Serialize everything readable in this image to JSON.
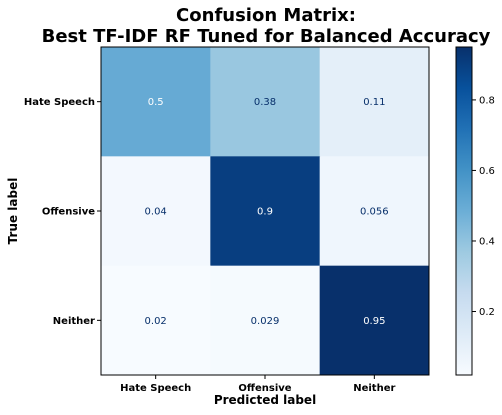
{
  "chart_data": {
    "type": "heatmap",
    "title_line1": "Confusion Matrix:",
    "title_line2": "Best TF-IDF RF Tuned for Balanced Accuracy",
    "xlabel": "Predicted label",
    "ylabel": "True label",
    "x_categories": [
      "Hate Speech",
      "Offensive",
      "Neither"
    ],
    "y_categories": [
      "Hate Speech",
      "Offensive",
      "Neither"
    ],
    "values": [
      [
        0.5,
        0.38,
        0.11
      ],
      [
        0.04,
        0.9,
        0.056
      ],
      [
        0.02,
        0.029,
        0.95
      ]
    ],
    "cell_labels": [
      [
        "0.5",
        "0.38",
        "0.11"
      ],
      [
        "0.04",
        "0.9",
        "0.056"
      ],
      [
        "0.02",
        "0.029",
        "0.95"
      ]
    ],
    "colormap": "Blues",
    "colorbar": {
      "vmin": 0.02,
      "vmax": 0.95,
      "ticks": [
        0.2,
        0.4,
        0.6,
        0.8
      ],
      "tick_labels": [
        "0.2",
        "0.4",
        "0.6",
        "0.8"
      ]
    },
    "grid": false
  }
}
